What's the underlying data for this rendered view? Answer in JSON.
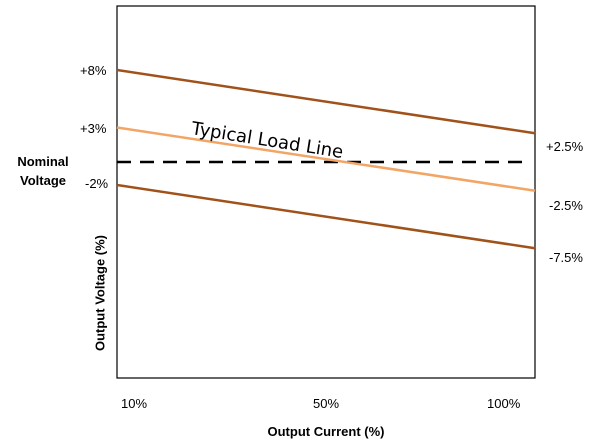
{
  "chart_data": {
    "type": "line",
    "xlabel": "Output Current (%)",
    "ylabel": "Output Voltage (%)",
    "nominal_label_line1": "Nominal",
    "nominal_label_line2": "Voltage",
    "annotation": "Typical Load Line",
    "x_tick_labels": [
      "10%",
      "50%",
      "100%"
    ],
    "x": [
      10,
      100
    ],
    "series": [
      {
        "role": "upper",
        "start_label": "+8%",
        "end_label": "+2.5%",
        "values": [
          8,
          2.5
        ],
        "color": "#a0521a"
      },
      {
        "role": "typical",
        "start_label": "+3%",
        "end_label": "-2.5%",
        "values": [
          3,
          -2.5
        ],
        "color": "#f2a565"
      },
      {
        "role": "lower",
        "start_label": "-2%",
        "end_label": "-7.5%",
        "values": [
          -2,
          -7.5
        ],
        "color": "#a0521a"
      }
    ],
    "nominal_value": 0,
    "nominal_style": "dashed"
  }
}
